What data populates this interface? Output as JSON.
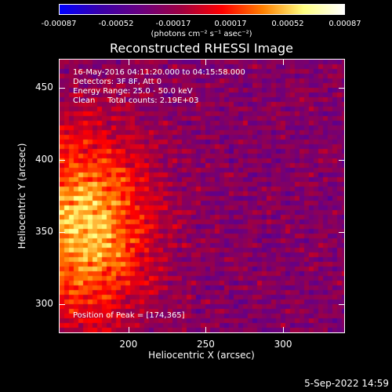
{
  "colorbar": {
    "tick_labels": [
      "-0.00087",
      "-0.00052",
      "-0.00017",
      "0.00017",
      "0.00052",
      "0.00087"
    ],
    "units_text": "(photons cm⁻² s⁻¹ asec⁻²)",
    "colors": [
      "#0000ff",
      "#3a00aa",
      "#6a0080",
      "#a00040",
      "#ff0000",
      "#ff8000",
      "#ffff80",
      "#ffffff"
    ]
  },
  "title": "Reconstructed RHESSI Image",
  "info": {
    "line1": "16-May-2016 04:11:20.000 to 04:15:58.000",
    "line2": "Detectors: 3F 8F, Att 0",
    "line3": "Energy Range: 25.0 - 50.0 keV",
    "line4": "Clean     Total counts: 2.19E+03"
  },
  "peak": "Position of Peak = [174,365]",
  "chart_data": {
    "type": "heatmap",
    "title": "Reconstructed RHESSI Image",
    "xlabel": "Heliocentric X (arcsec)",
    "ylabel": "Heliocentric Y (arcsec)",
    "xlim": [
      155,
      340
    ],
    "ylim": [
      280,
      470
    ],
    "x_ticks": [
      200,
      250,
      300
    ],
    "y_ticks": [
      300,
      350,
      400,
      450
    ],
    "value_range": [
      -0.00087,
      0.00087
    ],
    "peak_position": [
      174,
      365
    ]
  },
  "timestamp": "5-Sep-2022 14:59"
}
